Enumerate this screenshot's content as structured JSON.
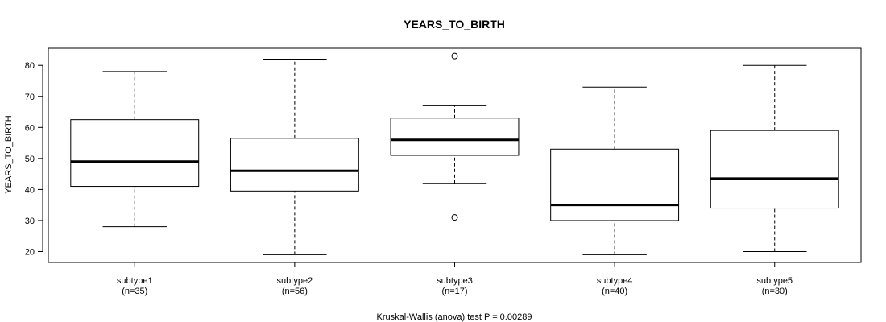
{
  "chart_data": {
    "type": "boxplot",
    "title": "YEARS_TO_BIRTH",
    "ylabel": "YEARS_TO_BIRTH",
    "xlabel": "Kruskal-Wallis (anova) test P = 0.00289",
    "ylim": [
      16.5,
      85.5
    ],
    "yticks": [
      20,
      30,
      40,
      50,
      60,
      70,
      80
    ],
    "grid": false,
    "legend": "none",
    "groups": [
      {
        "name": "subtype1",
        "n_label": "(n=35)",
        "whisker_low": 28,
        "q1": 41,
        "median": 49,
        "q3": 62.5,
        "whisker_high": 78,
        "outliers": []
      },
      {
        "name": "subtype2",
        "n_label": "(n=56)",
        "whisker_low": 19,
        "q1": 39.5,
        "median": 46,
        "q3": 56.5,
        "whisker_high": 82,
        "outliers": []
      },
      {
        "name": "subtype3",
        "n_label": "(n=17)",
        "whisker_low": 42,
        "q1": 51,
        "median": 56,
        "q3": 63,
        "whisker_high": 67,
        "outliers": [
          83,
          31
        ]
      },
      {
        "name": "subtype4",
        "n_label": "(n=40)",
        "whisker_low": 19,
        "q1": 30,
        "median": 35,
        "q3": 53,
        "whisker_high": 73,
        "outliers": []
      },
      {
        "name": "subtype5",
        "n_label": "(n=30)",
        "whisker_low": 20,
        "q1": 34,
        "median": 43.5,
        "q3": 59,
        "whisker_high": 80,
        "outliers": []
      }
    ]
  }
}
